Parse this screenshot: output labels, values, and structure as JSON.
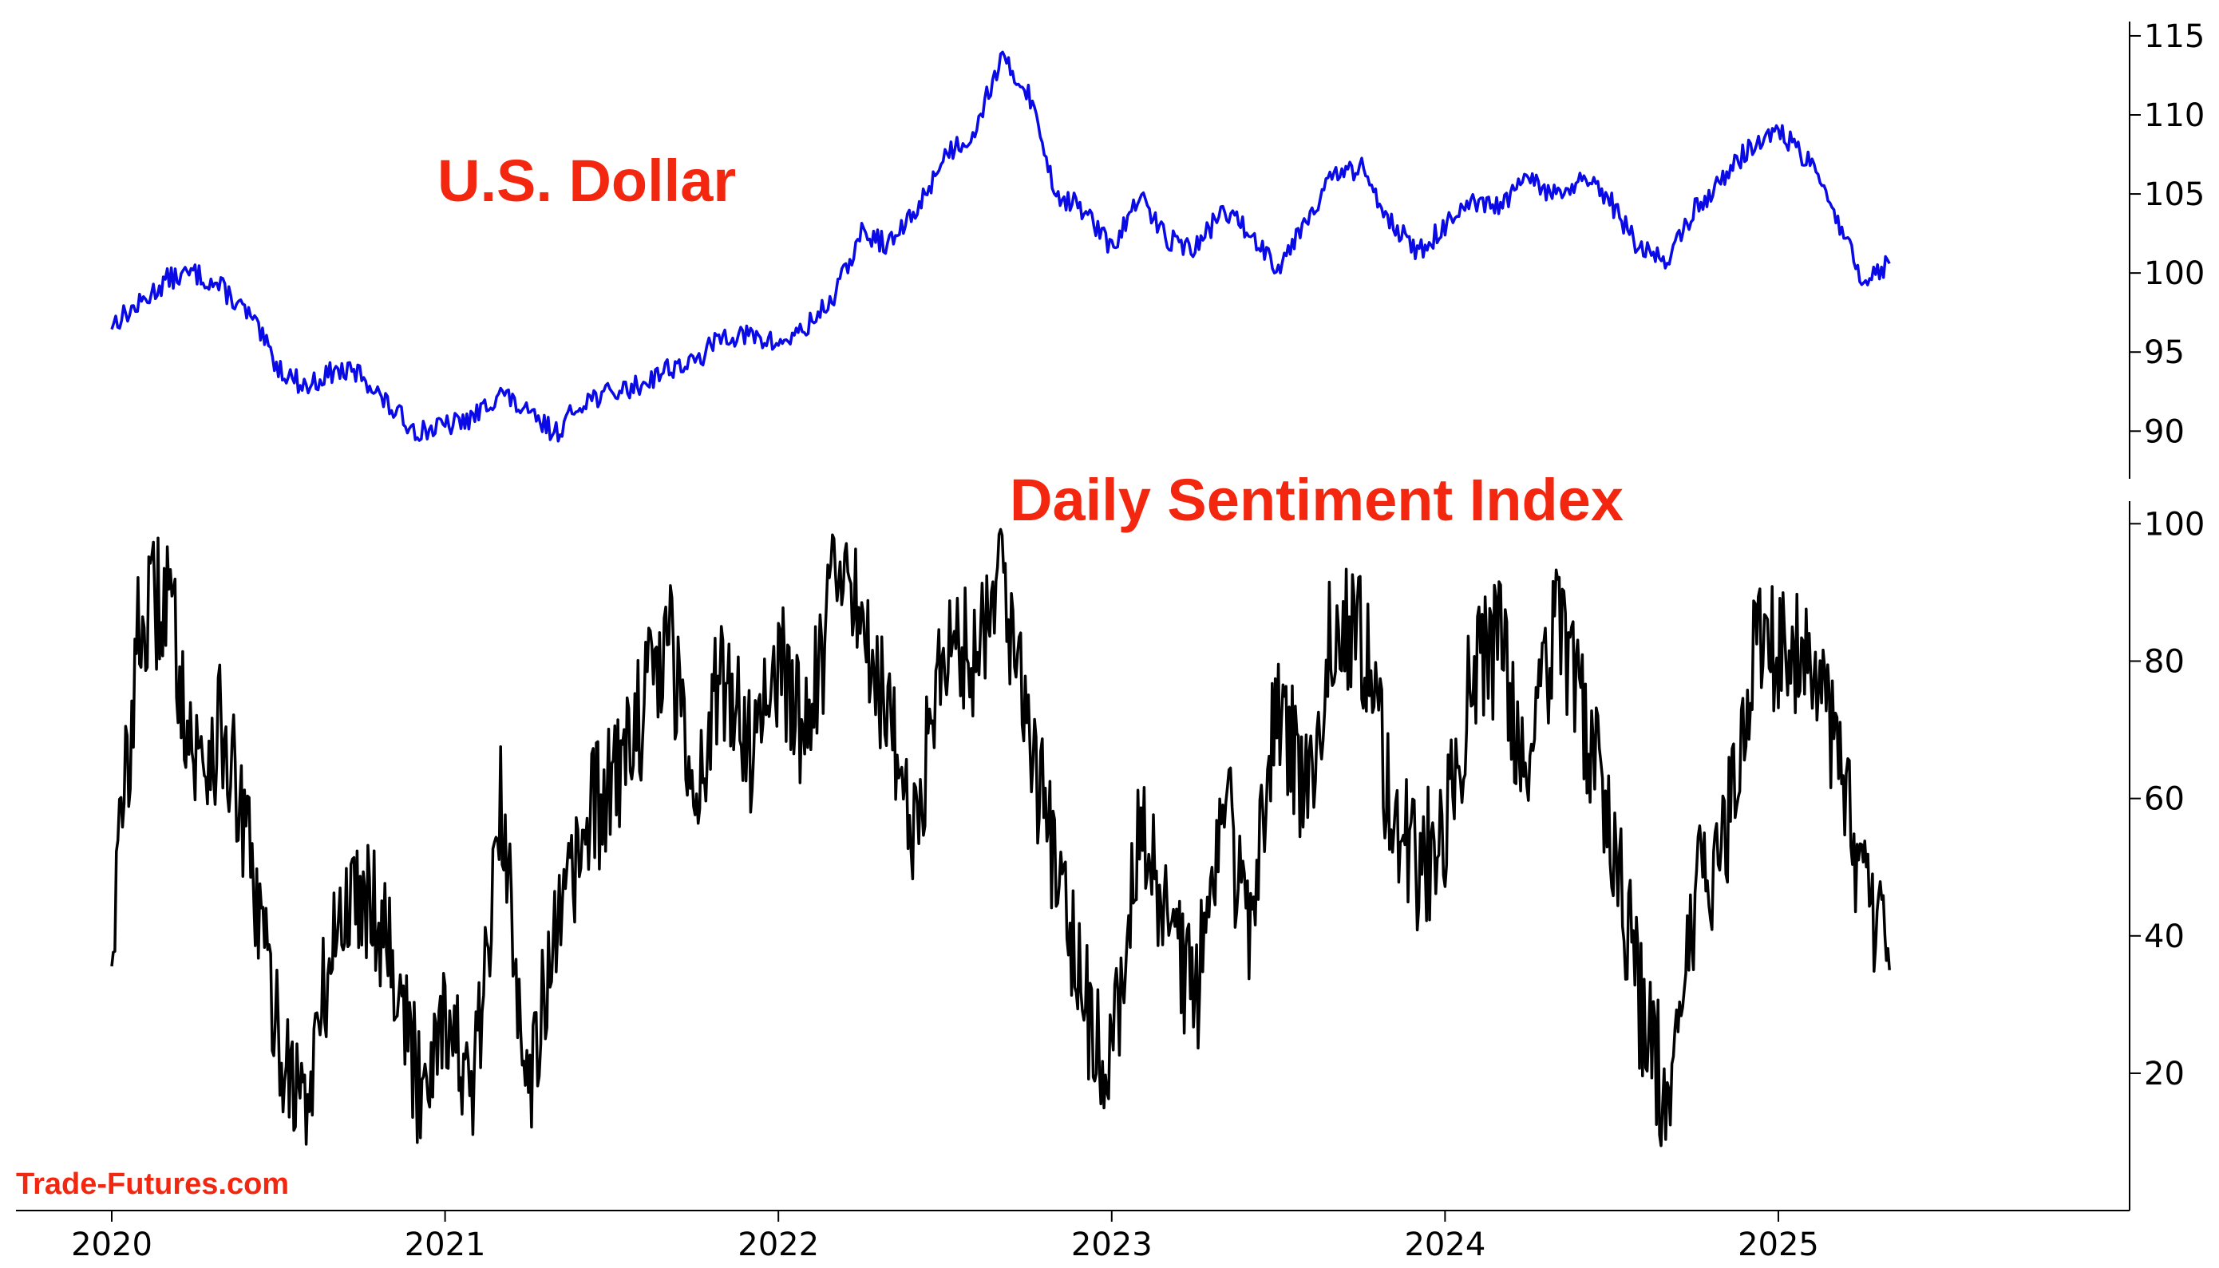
{
  "chart_data": [
    {
      "type": "line",
      "title": "U.S. Dollar",
      "ylim": [
        88.5,
        115.3
      ],
      "yticks": [
        90,
        95,
        100,
        105,
        110,
        115
      ],
      "axis_side": "right",
      "series": [
        {
          "color": "#0a0ae6",
          "x": [
            "2020-01",
            "2020-02",
            "2020-03",
            "2020-04",
            "2020-05",
            "2020-06",
            "2020-07",
            "2020-08",
            "2020-09",
            "2020-10",
            "2020-11",
            "2020-12",
            "2021-01",
            "2021-02",
            "2021-03",
            "2021-04",
            "2021-05",
            "2021-06",
            "2021-07",
            "2021-08",
            "2021-09",
            "2021-10",
            "2021-11",
            "2021-12",
            "2022-01",
            "2022-02",
            "2022-03",
            "2022-04",
            "2022-05",
            "2022-06",
            "2022-07",
            "2022-08",
            "2022-09",
            "2022-10",
            "2022-11",
            "2022-12",
            "2023-01",
            "2023-02",
            "2023-03",
            "2023-04",
            "2023-05",
            "2023-06",
            "2023-07",
            "2023-08",
            "2023-09",
            "2023-10",
            "2023-11",
            "2023-12",
            "2024-01",
            "2024-02",
            "2024-03",
            "2024-04",
            "2024-05",
            "2024-06",
            "2024-07",
            "2024-08",
            "2024-09",
            "2024-10",
            "2024-11",
            "2024-12",
            "2025-01",
            "2025-02",
            "2025-03",
            "2025-04",
            "2025-05"
          ],
          "values": [
            96.8,
            98.0,
            99.6,
            100.0,
            99.0,
            97.2,
            94.0,
            92.8,
            93.8,
            93.6,
            91.5,
            90.0,
            90.3,
            90.8,
            92.5,
            91.0,
            89.9,
            92.0,
            92.4,
            92.9,
            94.0,
            94.3,
            96.1,
            96.0,
            95.5,
            96.5,
            98.5,
            102.5,
            101.8,
            104.0,
            107.5,
            108.8,
            113.5,
            111.5,
            105.0,
            104.0,
            101.5,
            104.8,
            102.2,
            101.5,
            104.0,
            102.5,
            100.4,
            103.5,
            106.2,
            106.6,
            103.5,
            101.2,
            103.0,
            104.3,
            104.2,
            106.0,
            104.8,
            105.9,
            104.4,
            101.5,
            100.9,
            104.0,
            106.0,
            108.0,
            109.0,
            107.2,
            104.1,
            99.5,
            100.6
          ]
        }
      ]
    },
    {
      "type": "line",
      "title": "Daily Sentiment Index",
      "ylim": [
        3.5,
        100.5
      ],
      "yticks": [
        20,
        40,
        60,
        80,
        100
      ],
      "axis_side": "right",
      "xlabels": [
        "2020",
        "2021",
        "2022",
        "2023",
        "2024",
        "2025"
      ],
      "series": [
        {
          "color": "#000000",
          "x": [
            "2020-01",
            "2020-02",
            "2020-03",
            "2020-04",
            "2020-05",
            "2020-06",
            "2020-07",
            "2020-08",
            "2020-09",
            "2020-10",
            "2020-11",
            "2020-12",
            "2021-01",
            "2021-02",
            "2021-03",
            "2021-04",
            "2021-05",
            "2021-06",
            "2021-07",
            "2021-08",
            "2021-09",
            "2021-10",
            "2021-11",
            "2021-12",
            "2022-01",
            "2022-02",
            "2022-03",
            "2022-04",
            "2022-05",
            "2022-06",
            "2022-07",
            "2022-08",
            "2022-09",
            "2022-10",
            "2022-11",
            "2022-12",
            "2023-01",
            "2023-02",
            "2023-03",
            "2023-04",
            "2023-05",
            "2023-06",
            "2023-07",
            "2023-08",
            "2023-09",
            "2023-10",
            "2023-11",
            "2023-12",
            "2024-01",
            "2024-02",
            "2024-03",
            "2024-04",
            "2024-05",
            "2024-06",
            "2024-07",
            "2024-08",
            "2024-09",
            "2024-10",
            "2024-11",
            "2024-12",
            "2025-01",
            "2025-02",
            "2025-03",
            "2025-04",
            "2025-05"
          ],
          "values": [
            40,
            85,
            90,
            65,
            70,
            50,
            25,
            15,
            40,
            48,
            40,
            18,
            30,
            15,
            58,
            20,
            38,
            55,
            62,
            72,
            84,
            62,
            78,
            68,
            80,
            70,
            90,
            88,
            70,
            55,
            85,
            80,
            95,
            70,
            50,
            30,
            20,
            58,
            42,
            30,
            60,
            40,
            75,
            60,
            86,
            84,
            60,
            50,
            55,
            78,
            82,
            62,
            85,
            72,
            55,
            30,
            16,
            45,
            52,
            80,
            82,
            80,
            70,
            45,
            35
          ]
        }
      ]
    }
  ],
  "x_axis": {
    "labels": [
      "2020",
      "2021",
      "2022",
      "2023",
      "2024",
      "2025"
    ]
  },
  "watermark": "Trade-Futures.com"
}
